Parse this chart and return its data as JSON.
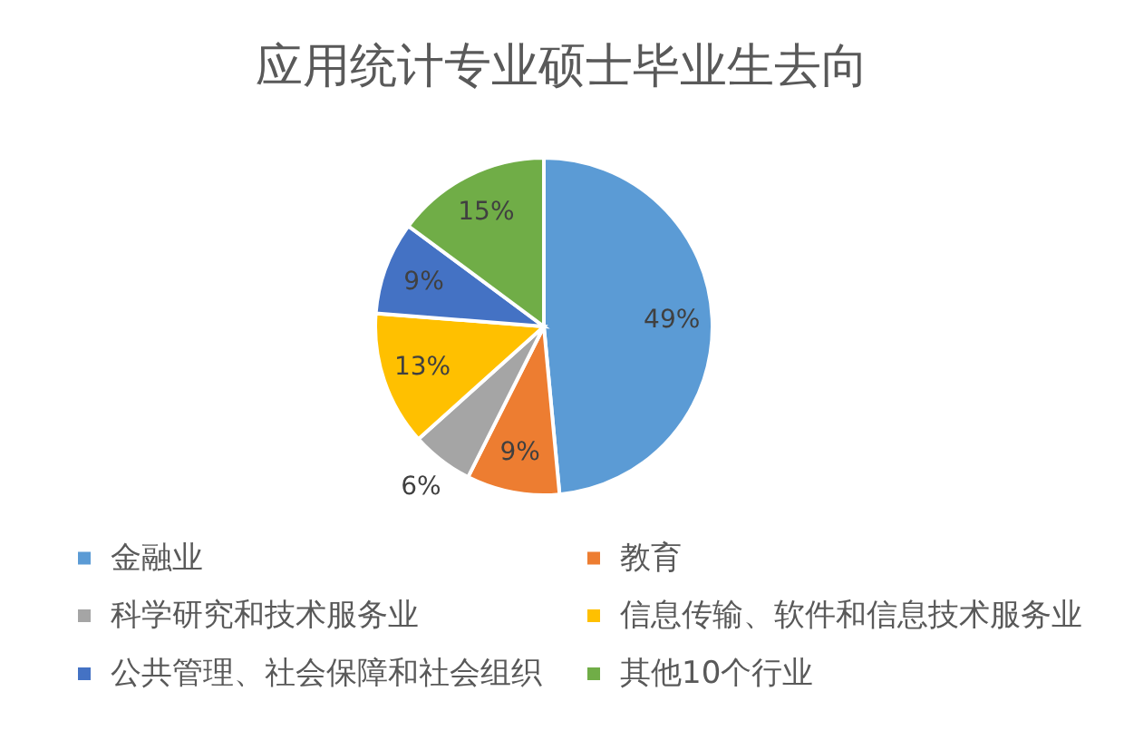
{
  "chart_data": {
    "type": "pie",
    "title": "应用统计专业硕士毕业生去向",
    "categories": [
      "金融业",
      "教育",
      "科学研究和技术服务业",
      "信息传输、软件和信息技术服务业",
      "公共管理、社会保障和社会组织",
      "其他10个行业"
    ],
    "values": [
      49,
      9,
      6,
      13,
      9,
      15
    ],
    "colors": [
      "#5b9bd5",
      "#ed7d31",
      "#a5a5a5",
      "#ffc000",
      "#4472c4",
      "#70ad47"
    ],
    "value_labels": [
      "49%",
      "9%",
      "6%",
      "13%",
      "9%",
      "15%"
    ],
    "legend": "bottom"
  }
}
